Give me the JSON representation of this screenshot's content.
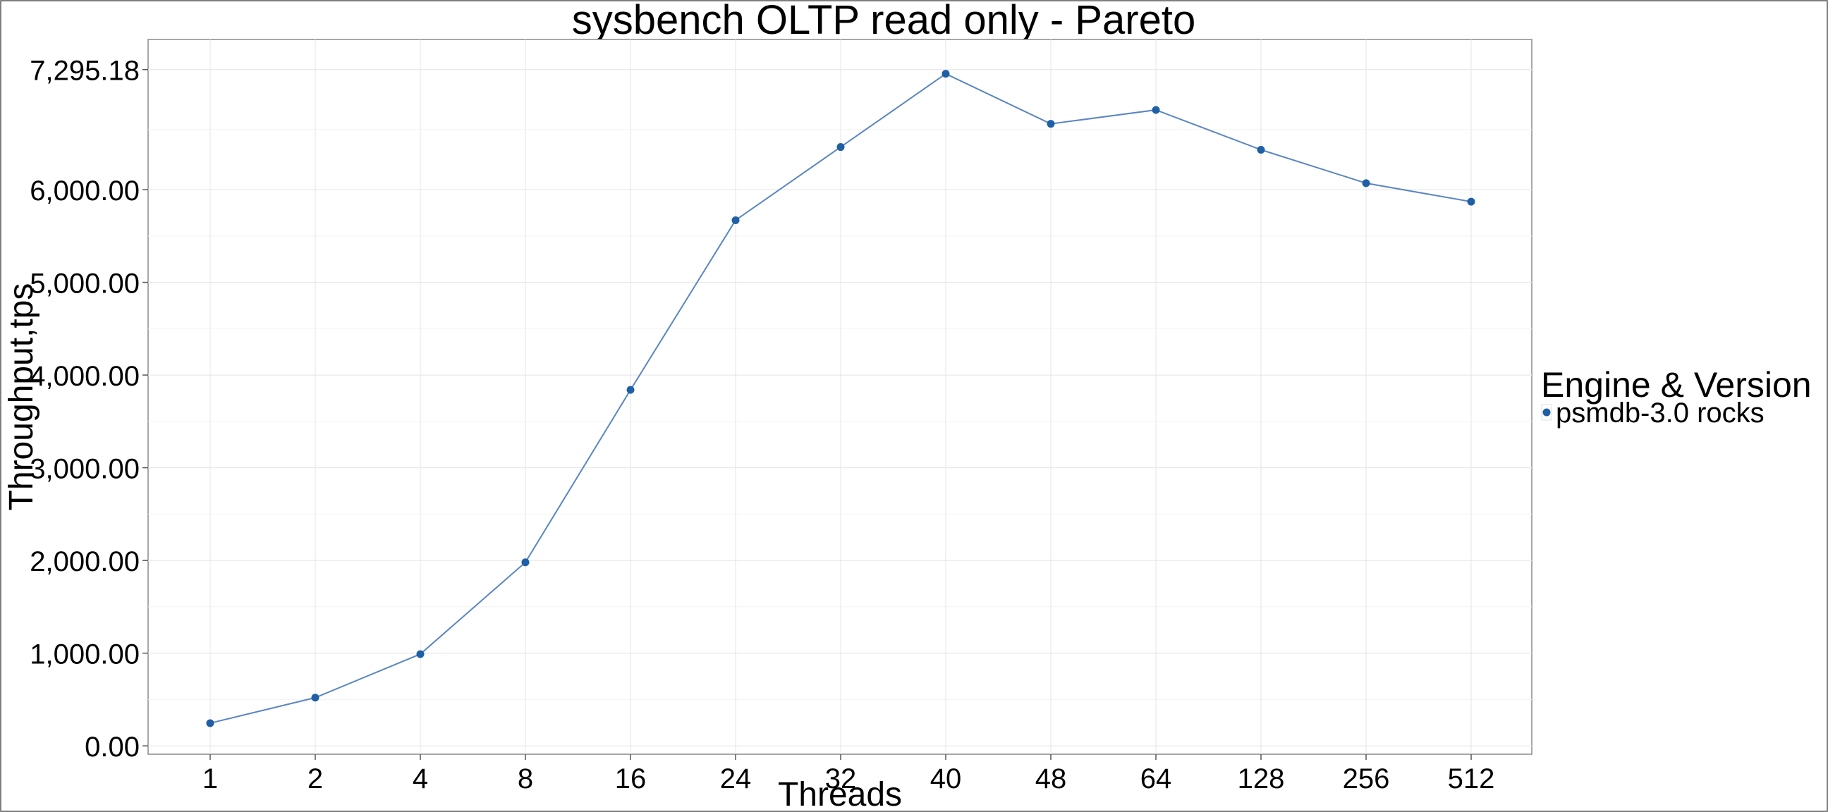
{
  "chart_data": {
    "type": "line",
    "title": "sysbench OLTP read only - Pareto",
    "xlabel": "Threads",
    "ylabel": "Throughput,tps",
    "categories": [
      "1",
      "2",
      "4",
      "8",
      "16",
      "24",
      "32",
      "40",
      "48",
      "64",
      "128",
      "256",
      "512"
    ],
    "yticks": [
      0,
      1000,
      2000,
      3000,
      4000,
      5000,
      6000,
      7295.18
    ],
    "ytick_labels": [
      "0.00",
      "1,000.00",
      "2,000.00",
      "3,000.00",
      "4,000.00",
      "5,000.00",
      "6,000.00",
      "7,295.18"
    ],
    "ylim": [
      -90,
      7620
    ],
    "grid": true,
    "legend_title": "Engine & Version",
    "legend_position": "right",
    "series": [
      {
        "name": "psmdb-3.0 rocks",
        "color": "#1f5fa6",
        "line_color": "#5a86c2",
        "values": [
          245,
          520,
          990,
          1980,
          3840,
          5670,
          6460,
          7250,
          6710,
          6860,
          6430,
          6070,
          5870
        ]
      }
    ]
  }
}
